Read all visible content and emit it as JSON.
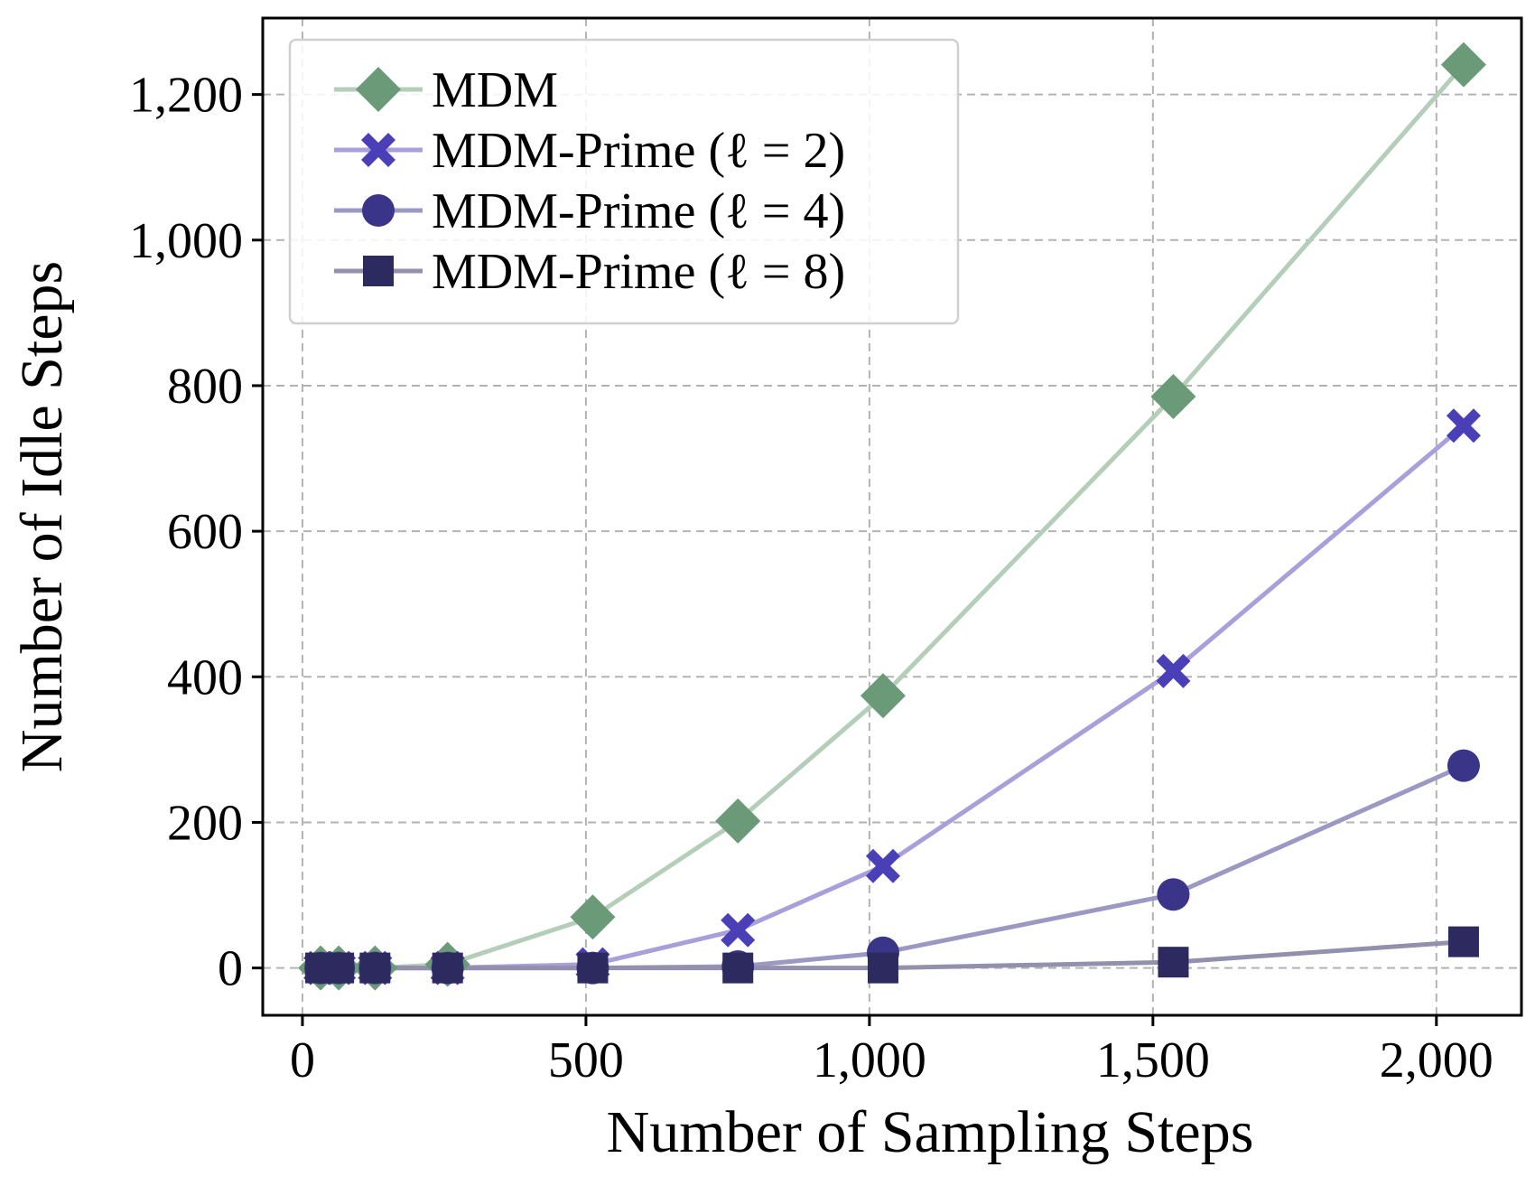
{
  "chart_data": {
    "type": "line",
    "title": "",
    "xlabel": "Number of Sampling Steps",
    "ylabel": "Number of Idle Steps",
    "xlim": [
      -70,
      2150
    ],
    "ylim": [
      -65,
      1305
    ],
    "xticks": [
      0,
      500,
      1000,
      1500,
      2000
    ],
    "yticks": [
      0,
      200,
      400,
      600,
      800,
      1000,
      1200
    ],
    "xtick_labels": [
      "0",
      "500",
      "1,000",
      "1,500",
      "2,000"
    ],
    "ytick_labels": [
      "0",
      "200",
      "400",
      "600",
      "800",
      "1,000",
      "1,200"
    ],
    "grid": true,
    "legend_position": "top-left",
    "series": [
      {
        "name": "MDM",
        "legend_base": "MDM",
        "legend_math": "",
        "marker": "diamond",
        "marker_color": "#6a9a78",
        "line_color": "#b4ceba",
        "x": [
          32,
          64,
          128,
          256,
          512,
          768,
          1024,
          1536,
          2048
        ],
        "y": [
          0,
          0,
          0,
          5,
          70,
          202,
          374,
          785,
          1241
        ]
      },
      {
        "name": "MDM-Prime (ℓ = 2)",
        "legend_base": "MDM-Prime",
        "legend_math": "(ℓ = 2)",
        "marker": "x",
        "marker_color": "#4b3fb7",
        "line_color": "#a89fdb",
        "x": [
          32,
          64,
          128,
          256,
          512,
          768,
          1024,
          1536,
          2048
        ],
        "y": [
          0,
          0,
          0,
          0,
          5,
          52,
          140,
          408,
          745
        ]
      },
      {
        "name": "MDM-Prime (ℓ = 4)",
        "legend_base": "MDM-Prime",
        "legend_math": "(ℓ = 4)",
        "marker": "circle",
        "marker_color": "#3b3589",
        "line_color": "#9c98c4",
        "x": [
          32,
          64,
          128,
          256,
          512,
          768,
          1024,
          1536,
          2048
        ],
        "y": [
          0,
          0,
          0,
          0,
          0,
          2,
          21,
          101,
          278
        ]
      },
      {
        "name": "MDM-Prime (ℓ = 8)",
        "legend_base": "MDM-Prime",
        "legend_math": "(ℓ = 8)",
        "marker": "square",
        "marker_color": "#2c2a5e",
        "line_color": "#9390ad",
        "x": [
          32,
          64,
          128,
          256,
          512,
          768,
          1024,
          1536,
          2048
        ],
        "y": [
          0,
          0,
          0,
          0,
          0,
          0,
          0,
          8,
          36
        ]
      }
    ]
  }
}
